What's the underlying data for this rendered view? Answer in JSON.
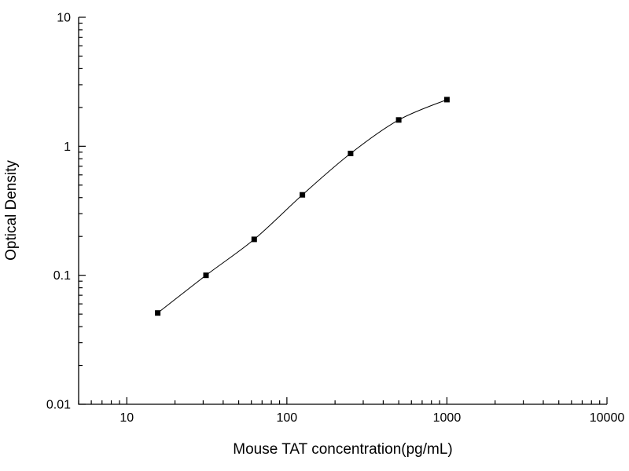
{
  "chart_data": {
    "type": "scatter",
    "title": "",
    "xlabel": "Mouse TAT concentration(pg/mL)",
    "ylabel": "Optical Density",
    "x_scale": "log",
    "y_scale": "log",
    "xlim": [
      5,
      10000
    ],
    "ylim": [
      0.01,
      10
    ],
    "x_major_ticks": [
      10,
      100,
      1000,
      10000
    ],
    "y_major_ticks": [
      0.01,
      0.1,
      1,
      10
    ],
    "grid": false,
    "legend": "none",
    "points": [
      {
        "x": 15.6,
        "y": 0.051
      },
      {
        "x": 31.25,
        "y": 0.1
      },
      {
        "x": 62.5,
        "y": 0.19
      },
      {
        "x": 125,
        "y": 0.42
      },
      {
        "x": 250,
        "y": 0.88
      },
      {
        "x": 500,
        "y": 1.6
      },
      {
        "x": 1000,
        "y": 2.3
      }
    ],
    "marker": {
      "shape": "square",
      "color": "#000000",
      "size": 7
    },
    "line": {
      "color": "#000000",
      "width": 1,
      "style": "smooth-sigmoid-fit"
    }
  }
}
